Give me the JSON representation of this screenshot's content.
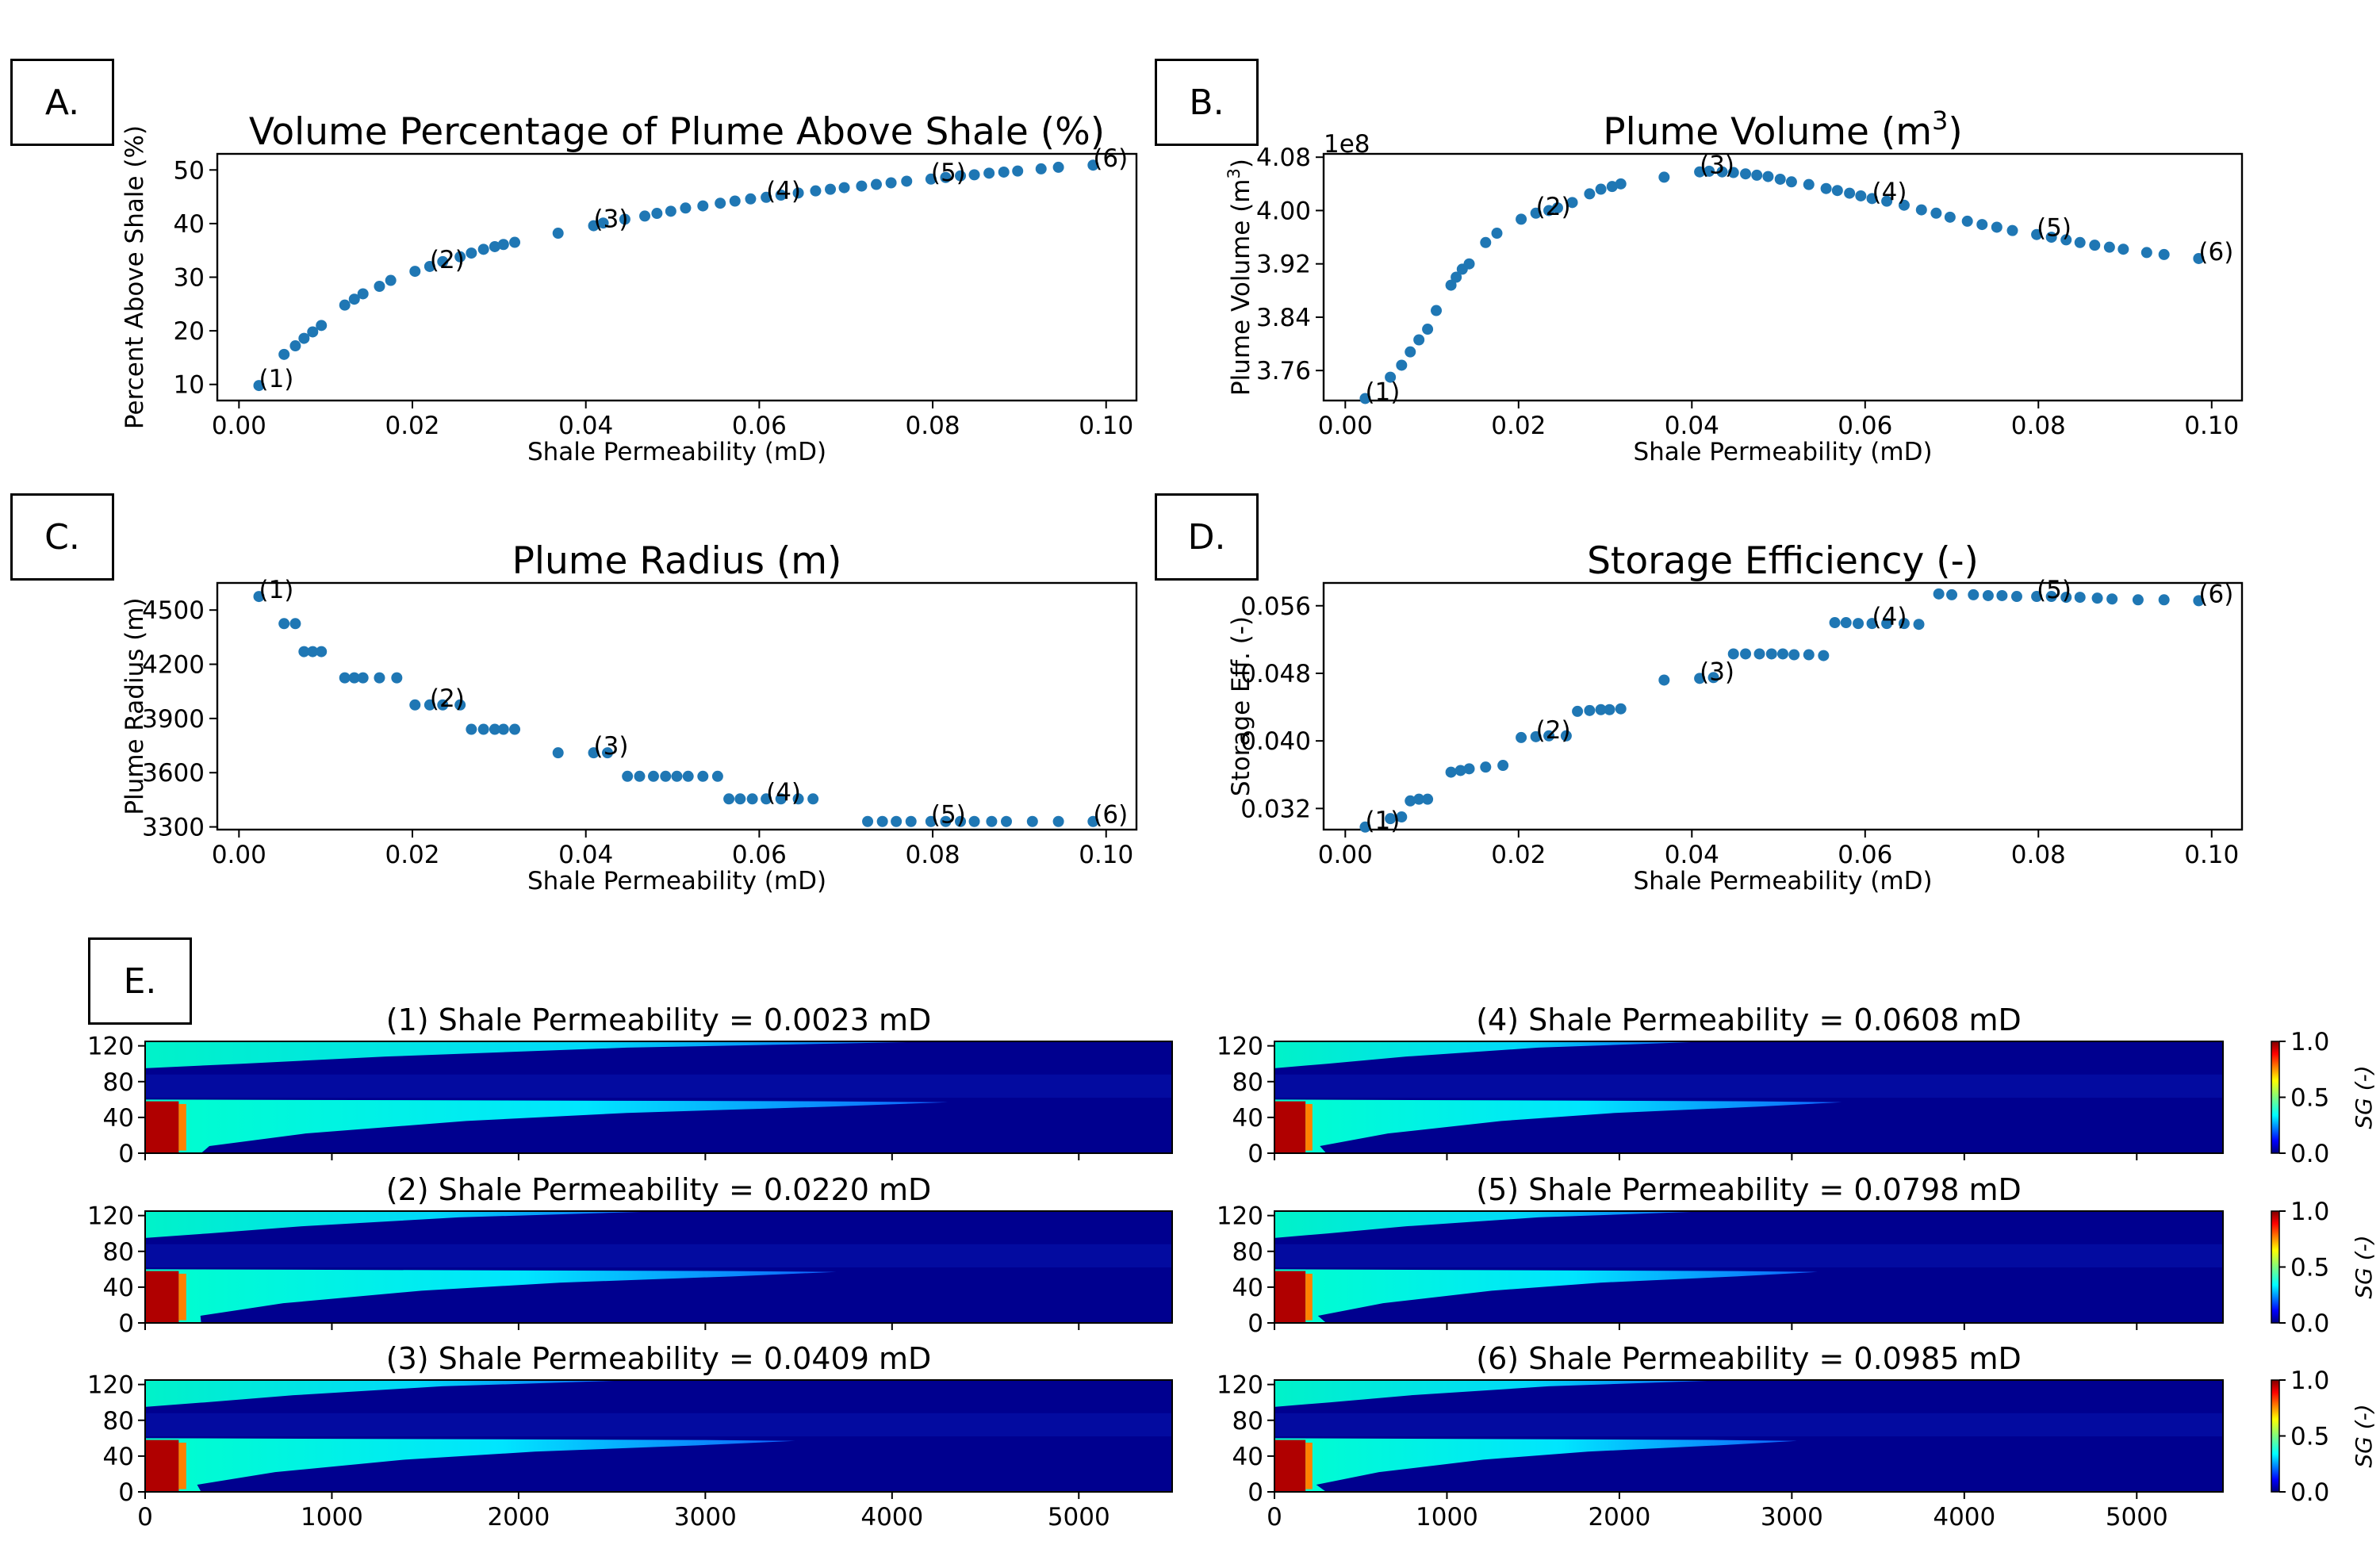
{
  "panel_labels": [
    "A.",
    "B.",
    "C.",
    "D.",
    "E."
  ],
  "colors": {
    "marker": "#1f77b4",
    "axis": "#000000"
  },
  "chart_data": [
    {
      "panel": "A.",
      "type": "scatter",
      "title": "Volume Percentage of Plume Above Shale (%)",
      "xlabel": "Shale Permeability (mD)",
      "ylabel": "Percent Above Shale (%)",
      "xlim": [
        -0.0025,
        0.1035
      ],
      "ylim": [
        7,
        53
      ],
      "xticks": [
        0.0,
        0.02,
        0.04,
        0.06,
        0.08,
        0.1
      ],
      "xtick_labels": [
        "0.00",
        "0.02",
        "0.04",
        "0.06",
        "0.08",
        "0.10"
      ],
      "yticks": [
        10,
        20,
        30,
        40,
        50
      ],
      "ytick_labels": [
        "10",
        "20",
        "30",
        "40",
        "50"
      ],
      "grid": false,
      "points": [
        [
          0.0023,
          9.8
        ],
        [
          0.0052,
          15.6
        ],
        [
          0.0065,
          17.2
        ],
        [
          0.0075,
          18.6
        ],
        [
          0.0085,
          19.8
        ],
        [
          0.0095,
          21.0
        ],
        [
          0.0122,
          24.8
        ],
        [
          0.0133,
          25.9
        ],
        [
          0.0143,
          26.9
        ],
        [
          0.0162,
          28.3
        ],
        [
          0.0175,
          29.4
        ],
        [
          0.0203,
          31.1
        ],
        [
          0.022,
          32.0
        ],
        [
          0.0235,
          32.9
        ],
        [
          0.0255,
          33.8
        ],
        [
          0.0268,
          34.5
        ],
        [
          0.0282,
          35.2
        ],
        [
          0.0295,
          35.7
        ],
        [
          0.0305,
          36.1
        ],
        [
          0.0318,
          36.5
        ],
        [
          0.0368,
          38.2
        ],
        [
          0.0409,
          39.6
        ],
        [
          0.042,
          40.1
        ],
        [
          0.0445,
          40.8
        ],
        [
          0.0468,
          41.4
        ],
        [
          0.0482,
          41.9
        ],
        [
          0.0498,
          42.3
        ],
        [
          0.0515,
          42.9
        ],
        [
          0.0535,
          43.3
        ],
        [
          0.0555,
          43.8
        ],
        [
          0.0572,
          44.2
        ],
        [
          0.059,
          44.6
        ],
        [
          0.0608,
          44.9
        ],
        [
          0.0625,
          45.3
        ],
        [
          0.0645,
          45.7
        ],
        [
          0.0665,
          46.1
        ],
        [
          0.0682,
          46.4
        ],
        [
          0.0698,
          46.7
        ],
        [
          0.0718,
          47.0
        ],
        [
          0.0735,
          47.3
        ],
        [
          0.0752,
          47.6
        ],
        [
          0.077,
          47.9
        ],
        [
          0.0798,
          48.3
        ],
        [
          0.0815,
          48.6
        ],
        [
          0.0832,
          48.9
        ],
        [
          0.0848,
          49.1
        ],
        [
          0.0865,
          49.4
        ],
        [
          0.0882,
          49.6
        ],
        [
          0.0898,
          49.8
        ],
        [
          0.0925,
          50.2
        ],
        [
          0.0945,
          50.5
        ],
        [
          0.0985,
          50.9
        ]
      ],
      "annotations": [
        {
          "text": "(1)",
          "x": 0.0023,
          "y": 9.8
        },
        {
          "text": "(2)",
          "x": 0.022,
          "y": 32.0
        },
        {
          "text": "(3)",
          "x": 0.0409,
          "y": 39.6
        },
        {
          "text": "(4)",
          "x": 0.0608,
          "y": 44.9
        },
        {
          "text": "(5)",
          "x": 0.0798,
          "y": 48.3
        },
        {
          "text": "(6)",
          "x": 0.0985,
          "y": 50.9
        }
      ]
    },
    {
      "panel": "B.",
      "type": "scatter",
      "title_main": "Plume Volume (m",
      "title_sup": "3",
      "title_end": ")",
      "xlabel": "Shale Permeability (mD)",
      "ylabel_main": "Plume Volume (m",
      "ylabel_sup": "3",
      "ylabel_end": ")",
      "offset_text": "1e8",
      "xlim": [
        -0.0025,
        0.1035
      ],
      "ylim": [
        3.715,
        4.085
      ],
      "xticks": [
        0.0,
        0.02,
        0.04,
        0.06,
        0.08,
        0.1
      ],
      "xtick_labels": [
        "0.00",
        "0.02",
        "0.04",
        "0.06",
        "0.08",
        "0.10"
      ],
      "yticks": [
        3.76,
        3.84,
        3.92,
        4.0,
        4.08
      ],
      "ytick_labels": [
        "3.76",
        "3.84",
        "3.92",
        "4.00",
        "4.08"
      ],
      "grid": false,
      "points": [
        [
          0.0023,
          3.718
        ],
        [
          0.0052,
          3.75
        ],
        [
          0.0065,
          3.768
        ],
        [
          0.0075,
          3.788
        ],
        [
          0.0085,
          3.806
        ],
        [
          0.0095,
          3.822
        ],
        [
          0.0105,
          3.85
        ],
        [
          0.0122,
          3.888
        ],
        [
          0.0128,
          3.9
        ],
        [
          0.0135,
          3.912
        ],
        [
          0.0143,
          3.92
        ],
        [
          0.0162,
          3.952
        ],
        [
          0.0175,
          3.966
        ],
        [
          0.0203,
          3.987
        ],
        [
          0.022,
          3.996
        ],
        [
          0.0235,
          4.0
        ],
        [
          0.0245,
          4.004
        ],
        [
          0.0262,
          4.012
        ],
        [
          0.0282,
          4.025
        ],
        [
          0.0295,
          4.032
        ],
        [
          0.0308,
          4.036
        ],
        [
          0.0318,
          4.04
        ],
        [
          0.0368,
          4.05
        ],
        [
          0.0409,
          4.058
        ],
        [
          0.042,
          4.059
        ],
        [
          0.0435,
          4.058
        ],
        [
          0.0448,
          4.057
        ],
        [
          0.0462,
          4.055
        ],
        [
          0.0475,
          4.053
        ],
        [
          0.0488,
          4.051
        ],
        [
          0.0502,
          4.047
        ],
        [
          0.0515,
          4.043
        ],
        [
          0.0535,
          4.039
        ],
        [
          0.0555,
          4.033
        ],
        [
          0.0568,
          4.03
        ],
        [
          0.0582,
          4.026
        ],
        [
          0.0595,
          4.022
        ],
        [
          0.0608,
          4.018
        ],
        [
          0.0625,
          4.014
        ],
        [
          0.0645,
          4.008
        ],
        [
          0.0665,
          4.001
        ],
        [
          0.0682,
          3.996
        ],
        [
          0.0698,
          3.99
        ],
        [
          0.0718,
          3.984
        ],
        [
          0.0735,
          3.979
        ],
        [
          0.0752,
          3.975
        ],
        [
          0.077,
          3.97
        ],
        [
          0.0798,
          3.964
        ],
        [
          0.0815,
          3.96
        ],
        [
          0.0832,
          3.956
        ],
        [
          0.0848,
          3.952
        ],
        [
          0.0865,
          3.948
        ],
        [
          0.0882,
          3.945
        ],
        [
          0.0898,
          3.942
        ],
        [
          0.0925,
          3.937
        ],
        [
          0.0945,
          3.934
        ],
        [
          0.0985,
          3.928
        ]
      ],
      "annotations": [
        {
          "text": "(1)",
          "x": 0.0023,
          "y": 3.718
        },
        {
          "text": "(2)",
          "x": 0.022,
          "y": 3.996
        },
        {
          "text": "(3)",
          "x": 0.0409,
          "y": 4.058
        },
        {
          "text": "(4)",
          "x": 0.0608,
          "y": 4.018
        },
        {
          "text": "(5)",
          "x": 0.0798,
          "y": 3.964
        },
        {
          "text": "(6)",
          "x": 0.0985,
          "y": 3.928
        }
      ]
    },
    {
      "panel": "C.",
      "type": "scatter",
      "title": "Plume Radius (m)",
      "xlabel": "Shale Permeability (mD)",
      "ylabel": "Plume Radius (m)",
      "xlim": [
        -0.0025,
        0.1035
      ],
      "ylim": [
        3285,
        4650
      ],
      "xticks": [
        0.0,
        0.02,
        0.04,
        0.06,
        0.08,
        0.1
      ],
      "xtick_labels": [
        "0.00",
        "0.02",
        "0.04",
        "0.06",
        "0.08",
        "0.10"
      ],
      "yticks": [
        3300,
        3600,
        3900,
        4200,
        4500
      ],
      "ytick_labels": [
        "3300",
        "3600",
        "3900",
        "4200",
        "4500"
      ],
      "grid": false,
      "points": [
        [
          0.0023,
          4575
        ],
        [
          0.0052,
          4425
        ],
        [
          0.0065,
          4425
        ],
        [
          0.0075,
          4270
        ],
        [
          0.0085,
          4270
        ],
        [
          0.0095,
          4270
        ],
        [
          0.0122,
          4125
        ],
        [
          0.0133,
          4125
        ],
        [
          0.0143,
          4125
        ],
        [
          0.0162,
          4125
        ],
        [
          0.0182,
          4125
        ],
        [
          0.0203,
          3975
        ],
        [
          0.022,
          3975
        ],
        [
          0.0235,
          3975
        ],
        [
          0.0255,
          3975
        ],
        [
          0.0268,
          3840
        ],
        [
          0.0282,
          3840
        ],
        [
          0.0295,
          3840
        ],
        [
          0.0305,
          3840
        ],
        [
          0.0318,
          3840
        ],
        [
          0.0368,
          3710
        ],
        [
          0.0409,
          3710
        ],
        [
          0.0425,
          3710
        ],
        [
          0.0448,
          3580
        ],
        [
          0.0462,
          3580
        ],
        [
          0.0478,
          3580
        ],
        [
          0.0492,
          3580
        ],
        [
          0.0505,
          3580
        ],
        [
          0.0518,
          3580
        ],
        [
          0.0535,
          3580
        ],
        [
          0.0552,
          3580
        ],
        [
          0.0565,
          3455
        ],
        [
          0.0578,
          3455
        ],
        [
          0.0592,
          3455
        ],
        [
          0.0608,
          3455
        ],
        [
          0.0625,
          3455
        ],
        [
          0.0645,
          3455
        ],
        [
          0.0662,
          3455
        ],
        [
          0.0725,
          3330
        ],
        [
          0.0742,
          3330
        ],
        [
          0.0758,
          3330
        ],
        [
          0.0775,
          3330
        ],
        [
          0.0798,
          3330
        ],
        [
          0.0815,
          3330
        ],
        [
          0.0832,
          3330
        ],
        [
          0.0848,
          3330
        ],
        [
          0.0868,
          3330
        ],
        [
          0.0885,
          3330
        ],
        [
          0.0915,
          3330
        ],
        [
          0.0945,
          3330
        ],
        [
          0.0985,
          3330
        ]
      ],
      "annotations": [
        {
          "text": "(1)",
          "x": 0.0023,
          "y": 4575
        },
        {
          "text": "(2)",
          "x": 0.022,
          "y": 3975
        },
        {
          "text": "(3)",
          "x": 0.0409,
          "y": 3710
        },
        {
          "text": "(4)",
          "x": 0.0608,
          "y": 3455
        },
        {
          "text": "(5)",
          "x": 0.0798,
          "y": 3330
        },
        {
          "text": "(6)",
          "x": 0.0985,
          "y": 3330
        }
      ]
    },
    {
      "panel": "D.",
      "type": "scatter",
      "title": "Storage Efficiency (-)",
      "xlabel": "Shale Permeability (mD)",
      "ylabel": "Storage Eff. (-)",
      "xlim": [
        -0.0025,
        0.1035
      ],
      "ylim": [
        0.0295,
        0.0587
      ],
      "xticks": [
        0.0,
        0.02,
        0.04,
        0.06,
        0.08,
        0.1
      ],
      "xtick_labels": [
        "0.00",
        "0.02",
        "0.04",
        "0.06",
        "0.08",
        "0.10"
      ],
      "yticks": [
        0.032,
        0.04,
        0.048,
        0.056
      ],
      "ytick_labels": [
        "0.032",
        "0.040",
        "0.048",
        "0.056"
      ],
      "grid": false,
      "points": [
        [
          0.0023,
          0.0298
        ],
        [
          0.0052,
          0.0308
        ],
        [
          0.0065,
          0.031
        ],
        [
          0.0075,
          0.0329
        ],
        [
          0.0085,
          0.0331
        ],
        [
          0.0095,
          0.0331
        ],
        [
          0.0122,
          0.0363
        ],
        [
          0.0133,
          0.0365
        ],
        [
          0.0143,
          0.0367
        ],
        [
          0.0162,
          0.0369
        ],
        [
          0.0182,
          0.0371
        ],
        [
          0.0203,
          0.0404
        ],
        [
          0.022,
          0.0405
        ],
        [
          0.0235,
          0.0406
        ],
        [
          0.0255,
          0.0406
        ],
        [
          0.0268,
          0.0435
        ],
        [
          0.0282,
          0.0436
        ],
        [
          0.0295,
          0.0437
        ],
        [
          0.0305,
          0.0437
        ],
        [
          0.0318,
          0.0438
        ],
        [
          0.0368,
          0.0472
        ],
        [
          0.0409,
          0.0474
        ],
        [
          0.0425,
          0.0475
        ],
        [
          0.0448,
          0.0503
        ],
        [
          0.0462,
          0.0503
        ],
        [
          0.0478,
          0.0503
        ],
        [
          0.0492,
          0.0503
        ],
        [
          0.0505,
          0.0503
        ],
        [
          0.0518,
          0.0502
        ],
        [
          0.0535,
          0.0502
        ],
        [
          0.0552,
          0.0501
        ],
        [
          0.0565,
          0.054
        ],
        [
          0.0578,
          0.054
        ],
        [
          0.0592,
          0.0539
        ],
        [
          0.0608,
          0.0539
        ],
        [
          0.0625,
          0.0539
        ],
        [
          0.0645,
          0.0539
        ],
        [
          0.0662,
          0.0538
        ],
        [
          0.0685,
          0.0574
        ],
        [
          0.07,
          0.0573
        ],
        [
          0.0725,
          0.0573
        ],
        [
          0.0742,
          0.0572
        ],
        [
          0.0758,
          0.0572
        ],
        [
          0.0775,
          0.0571
        ],
        [
          0.0798,
          0.0571
        ],
        [
          0.0815,
          0.0571
        ],
        [
          0.0832,
          0.057
        ],
        [
          0.0848,
          0.057
        ],
        [
          0.0868,
          0.0569
        ],
        [
          0.0885,
          0.0568
        ],
        [
          0.0915,
          0.0567
        ],
        [
          0.0945,
          0.0567
        ],
        [
          0.0985,
          0.0566
        ]
      ],
      "annotations": [
        {
          "text": "(1)",
          "x": 0.0023,
          "y": 0.0298
        },
        {
          "text": "(2)",
          "x": 0.022,
          "y": 0.0405
        },
        {
          "text": "(3)",
          "x": 0.0409,
          "y": 0.0474
        },
        {
          "text": "(4)",
          "x": 0.0608,
          "y": 0.0539
        },
        {
          "text": "(5)",
          "x": 0.0798,
          "y": 0.0571
        },
        {
          "text": "(6)",
          "x": 0.0985,
          "y": 0.0566
        }
      ]
    },
    {
      "panel": "E.",
      "type": "heatmap",
      "colormap": "jet",
      "colorbar_label": "SG (-)",
      "colorbar_ticks": [
        "1.0",
        "0.5",
        "0.0"
      ],
      "xlim": [
        0,
        5500
      ],
      "ylim": [
        0,
        125
      ],
      "xticks": [
        0,
        1000,
        2000,
        3000,
        4000,
        5000
      ],
      "xtick_labels": [
        "0",
        "1000",
        "2000",
        "3000",
        "4000",
        "5000"
      ],
      "yticks": [
        0,
        40,
        80,
        120
      ],
      "ytick_labels": [
        "0",
        "40",
        "80",
        "120"
      ],
      "maps": [
        {
          "title": "(1) Shale Permeability = 0.0023 mD",
          "upper_reach": 4300,
          "lower_reach": 4300
        },
        {
          "title": "(2) Shale Permeability = 0.0220 mD",
          "upper_reach": 2800,
          "lower_reach": 3700
        },
        {
          "title": "(3) Shale Permeability = 0.0409 mD",
          "upper_reach": 2650,
          "lower_reach": 3480
        },
        {
          "title": "(4) Shale Permeability = 0.0608 mD",
          "upper_reach": 2550,
          "lower_reach": 3290
        },
        {
          "title": "(5) Shale Permeability = 0.0798 mD",
          "upper_reach": 2550,
          "lower_reach": 3150
        },
        {
          "title": "(6) Shale Permeability = 0.0985 mD",
          "upper_reach": 2650,
          "lower_reach": 3030
        }
      ]
    }
  ]
}
